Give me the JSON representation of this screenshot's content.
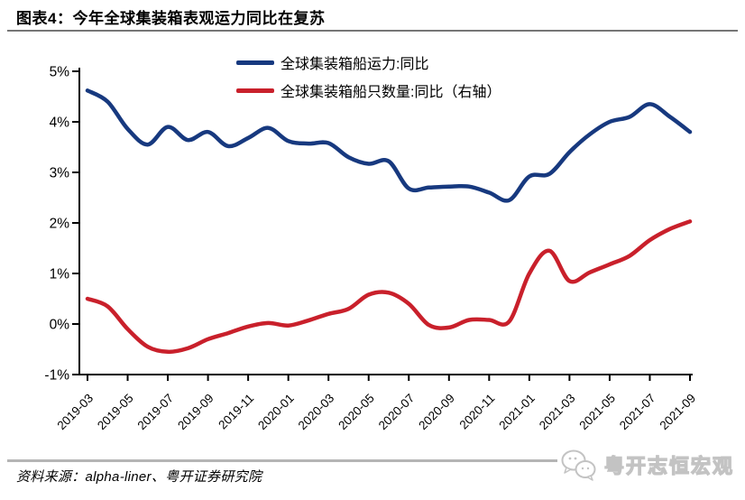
{
  "title": "图表4：今年全球集装箱表观运力同比在复苏",
  "legend": [
    {
      "label": "全球集装箱船运力:同比",
      "color": "#17397f"
    },
    {
      "label": "全球集装箱船只数量:同比（右轴）",
      "color": "#c9202b"
    }
  ],
  "footer": {
    "source": "资料来源：alpha-liner、粤开证券研究院"
  },
  "watermark": {
    "icon": "chat-bubbles-icon",
    "text": "粤开志恒宏观"
  },
  "chart_data": {
    "type": "line",
    "title": "图表4：今年全球集装箱表观运力同比在复苏",
    "categories": [
      "2019-03",
      "2019-04",
      "2019-05",
      "2019-06",
      "2019-07",
      "2019-08",
      "2019-09",
      "2019-10",
      "2019-11",
      "2019-12",
      "2020-01",
      "2020-02",
      "2020-03",
      "2020-04",
      "2020-05",
      "2020-06",
      "2020-07",
      "2020-08",
      "2020-09",
      "2020-10",
      "2020-11",
      "2020-12",
      "2021-01",
      "2021-02",
      "2021-03",
      "2021-04",
      "2021-05",
      "2021-06",
      "2021-07",
      "2021-08",
      "2021-09"
    ],
    "x_tick_labels": [
      "2019-03",
      "2019-05",
      "2019-07",
      "2019-09",
      "2019-11",
      "2020-01",
      "2020-03",
      "2020-05",
      "2020-07",
      "2020-09",
      "2020-11",
      "2021-01",
      "2021-03",
      "2021-05",
      "2021-07",
      "2021-09"
    ],
    "series": [
      {
        "name": "全球集装箱船运力:同比",
        "color": "#17397f",
        "axis": "left",
        "values": [
          4.62,
          4.4,
          3.86,
          3.55,
          3.9,
          3.64,
          3.8,
          3.52,
          3.68,
          3.88,
          3.62,
          3.57,
          3.58,
          3.3,
          3.17,
          3.22,
          2.68,
          2.7,
          2.72,
          2.72,
          2.6,
          2.45,
          2.92,
          2.97,
          3.4,
          3.75,
          4.0,
          4.1,
          4.35,
          4.1,
          3.8
        ]
      },
      {
        "name": "全球集装箱船只数量:同比（右轴）",
        "color": "#c9202b",
        "axis": "right",
        "values": [
          0.5,
          0.35,
          -0.1,
          -0.45,
          -0.55,
          -0.48,
          -0.3,
          -0.18,
          -0.05,
          0.02,
          -0.03,
          0.07,
          0.2,
          0.3,
          0.58,
          0.62,
          0.4,
          -0.02,
          -0.07,
          0.08,
          0.08,
          0.05,
          1.0,
          1.45,
          0.85,
          1.02,
          1.18,
          1.35,
          1.66,
          1.88,
          2.03
        ]
      }
    ],
    "y_ticks": [
      "5%",
      "4%",
      "3%",
      "2%",
      "1%",
      "0%",
      "-1%"
    ],
    "ylim": [
      -1,
      5
    ],
    "xlabel": "",
    "ylabel": "",
    "grid": false,
    "legend_position": "top-center"
  }
}
